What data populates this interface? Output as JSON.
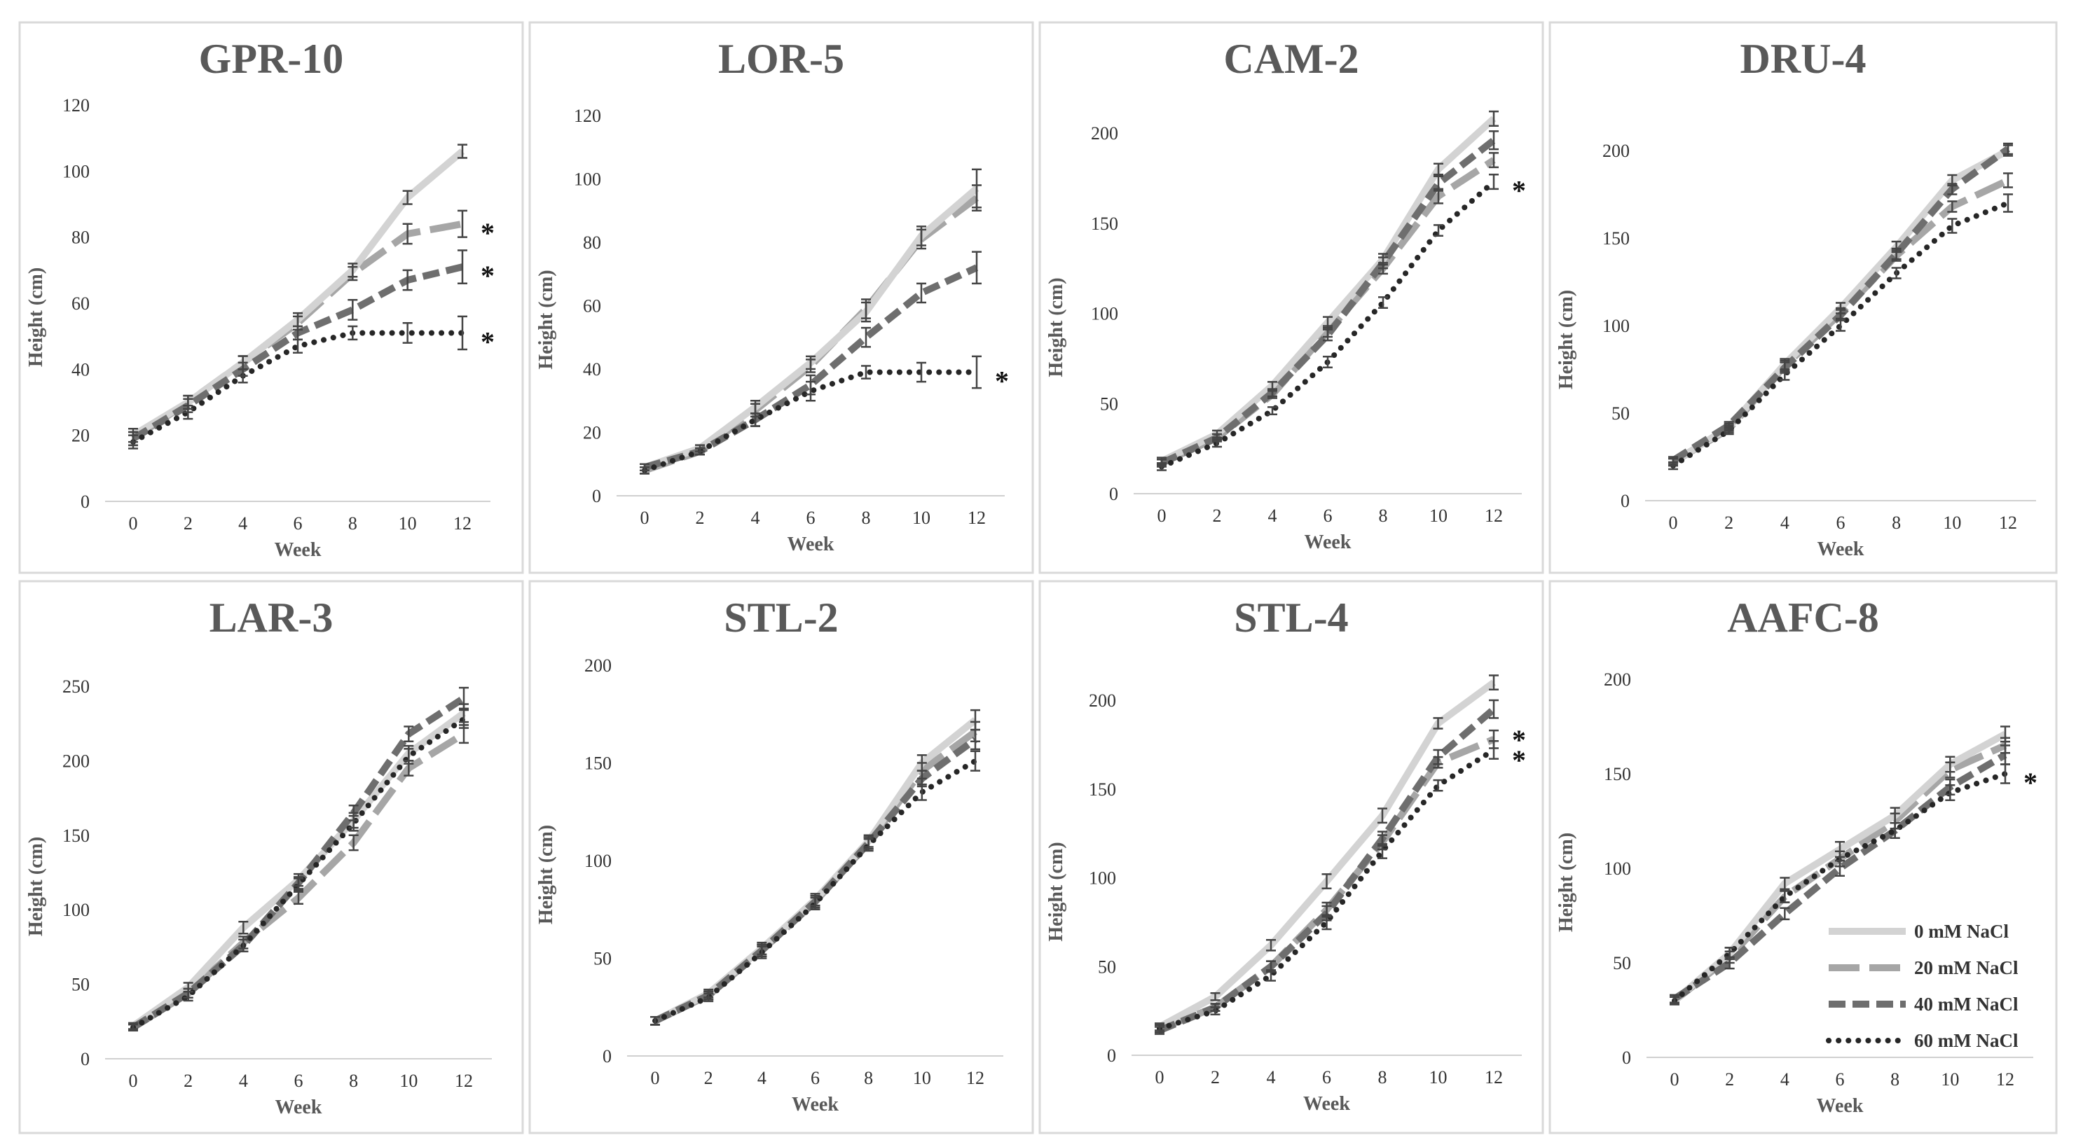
{
  "chart_data": [
    {
      "type": "line",
      "title": "GPR-10",
      "xlabel": "Week",
      "ylabel": "Height (cm)",
      "x": [
        0,
        2,
        4,
        6,
        8,
        10,
        12
      ],
      "ylim": [
        0,
        120
      ],
      "yticks": [
        0,
        20,
        40,
        60,
        80,
        100,
        120
      ],
      "series": [
        {
          "name": "0 mM NaCl",
          "values": [
            20,
            30,
            42,
            55,
            70,
            92,
            106
          ],
          "errors": [
            2,
            2,
            2,
            2,
            2,
            2,
            2
          ]
        },
        {
          "name": "20 mM NaCl",
          "values": [
            19,
            30,
            42,
            54,
            69,
            81,
            84
          ],
          "errors": [
            2,
            2,
            2,
            2,
            2,
            3,
            4
          ]
        },
        {
          "name": "40 mM NaCl",
          "values": [
            19,
            29,
            40,
            51,
            58,
            67,
            71
          ],
          "errors": [
            2,
            2,
            2,
            2,
            3,
            3,
            5
          ]
        },
        {
          "name": "60 mM NaCl",
          "values": [
            18,
            27,
            38,
            47,
            51,
            51,
            51
          ],
          "errors": [
            2,
            2,
            2,
            2,
            2,
            3,
            5
          ]
        }
      ],
      "significance": [
        "*",
        "*",
        "*"
      ]
    },
    {
      "type": "line",
      "title": "LOR-5",
      "xlabel": "Week",
      "ylabel": "Height (cm)",
      "x": [
        0,
        2,
        4,
        6,
        8,
        10,
        12
      ],
      "ylim": [
        0,
        120
      ],
      "yticks": [
        0,
        20,
        40,
        60,
        80,
        100,
        120
      ],
      "series": [
        {
          "name": "0 mM NaCl",
          "values": [
            9,
            15,
            28,
            42,
            58,
            82,
            97
          ],
          "errors": [
            1,
            1,
            2,
            2,
            3,
            3,
            6
          ]
        },
        {
          "name": "20 mM NaCl",
          "values": [
            8,
            14,
            27,
            41,
            59,
            81,
            94
          ],
          "errors": [
            1,
            1,
            2,
            2,
            3,
            3,
            4
          ]
        },
        {
          "name": "40 mM NaCl",
          "values": [
            9,
            14,
            24,
            35,
            50,
            64,
            72
          ],
          "errors": [
            1,
            1,
            2,
            3,
            3,
            3,
            5
          ]
        },
        {
          "name": "60 mM NaCl",
          "values": [
            8,
            14,
            24,
            33,
            39,
            39,
            39
          ],
          "errors": [
            1,
            1,
            2,
            3,
            2,
            3,
            5
          ]
        }
      ],
      "significance": [
        "*"
      ]
    },
    {
      "type": "line",
      "title": "CAM-2",
      "xlabel": "Week",
      "ylabel": "Height (cm)",
      "x": [
        0,
        2,
        4,
        6,
        8,
        10,
        12
      ],
      "ylim": [
        0,
        200
      ],
      "yticks": [
        0,
        50,
        100,
        150,
        200
      ],
      "series": [
        {
          "name": "0 mM NaCl",
          "values": [
            18,
            33,
            60,
            95,
            130,
            180,
            208
          ],
          "errors": [
            2,
            2,
            2,
            3,
            3,
            3,
            4
          ]
        },
        {
          "name": "20 mM NaCl",
          "values": [
            17,
            31,
            55,
            90,
            125,
            165,
            185
          ],
          "errors": [
            2,
            2,
            2,
            3,
            3,
            4,
            4
          ]
        },
        {
          "name": "40 mM NaCl",
          "values": [
            17,
            31,
            56,
            88,
            128,
            172,
            196
          ],
          "errors": [
            2,
            2,
            2,
            3,
            3,
            4,
            5
          ]
        },
        {
          "name": "60 mM NaCl",
          "values": [
            15,
            28,
            46,
            73,
            106,
            146,
            173
          ],
          "errors": [
            2,
            2,
            2,
            3,
            3,
            3,
            4
          ]
        }
      ],
      "significance": [
        "*"
      ]
    },
    {
      "type": "line",
      "title": "DRU-4",
      "xlabel": "Week",
      "ylabel": "Height (cm)",
      "x": [
        0,
        2,
        4,
        6,
        8,
        10,
        12
      ],
      "ylim": [
        0,
        200
      ],
      "yticks": [
        0,
        50,
        100,
        150,
        200
      ],
      "series": [
        {
          "name": "0 mM NaCl",
          "values": [
            22,
            42,
            78,
            110,
            145,
            183,
            200
          ],
          "errors": [
            2,
            2,
            3,
            3,
            3,
            3,
            3
          ]
        },
        {
          "name": "20 mM NaCl",
          "values": [
            22,
            41,
            77,
            107,
            140,
            168,
            183
          ],
          "errors": [
            2,
            2,
            3,
            3,
            3,
            3,
            4
          ]
        },
        {
          "name": "40 mM NaCl",
          "values": [
            23,
            43,
            76,
            106,
            141,
            178,
            201
          ],
          "errors": [
            2,
            2,
            3,
            3,
            3,
            3,
            3
          ]
        },
        {
          "name": "60 mM NaCl",
          "values": [
            20,
            40,
            72,
            100,
            130,
            157,
            170
          ],
          "errors": [
            2,
            2,
            3,
            3,
            3,
            4,
            5
          ]
        }
      ]
    },
    {
      "type": "line",
      "title": "LAR-3",
      "xlabel": "Week",
      "ylabel": "Height (cm)",
      "x": [
        0,
        2,
        4,
        6,
        8,
        10,
        12
      ],
      "ylim": [
        0,
        250
      ],
      "yticks": [
        0,
        50,
        100,
        150,
        200,
        250
      ],
      "series": [
        {
          "name": "0 mM NaCl",
          "values": [
            22,
            48,
            88,
            120,
            160,
            205,
            232
          ],
          "errors": [
            2,
            3,
            4,
            4,
            5,
            5,
            6
          ]
        },
        {
          "name": "20 mM NaCl",
          "values": [
            21,
            44,
            78,
            108,
            145,
            195,
            218
          ],
          "errors": [
            2,
            3,
            4,
            4,
            5,
            5,
            6
          ]
        },
        {
          "name": "40 mM NaCl",
          "values": [
            21,
            44,
            76,
            118,
            165,
            218,
            242
          ],
          "errors": [
            2,
            3,
            4,
            4,
            5,
            5,
            7
          ]
        },
        {
          "name": "60 mM NaCl",
          "values": [
            21,
            42,
            76,
            117,
            158,
            203,
            228
          ],
          "errors": [
            2,
            3,
            4,
            4,
            5,
            5,
            6
          ]
        }
      ]
    },
    {
      "type": "line",
      "title": "STL-2",
      "xlabel": "Week",
      "ylabel": "Height (cm)",
      "x": [
        0,
        2,
        4,
        6,
        8,
        10,
        12
      ],
      "ylim": [
        0,
        200
      ],
      "yticks": [
        0,
        50,
        100,
        150,
        200
      ],
      "series": [
        {
          "name": "0 mM NaCl",
          "values": [
            18,
            32,
            55,
            80,
            110,
            150,
            172
          ],
          "errors": [
            2,
            2,
            3,
            3,
            3,
            4,
            5
          ]
        },
        {
          "name": "20 mM NaCl",
          "values": [
            18,
            31,
            54,
            79,
            109,
            146,
            166
          ],
          "errors": [
            2,
            2,
            3,
            3,
            3,
            4,
            5
          ]
        },
        {
          "name": "40 mM NaCl",
          "values": [
            18,
            31,
            54,
            79,
            109,
            142,
            162
          ],
          "errors": [
            2,
            2,
            3,
            3,
            3,
            4,
            5
          ]
        },
        {
          "name": "60 mM NaCl",
          "values": [
            18,
            30,
            53,
            78,
            108,
            135,
            151
          ],
          "errors": [
            2,
            2,
            3,
            3,
            3,
            4,
            5
          ]
        }
      ]
    },
    {
      "type": "line",
      "title": "STL-4",
      "xlabel": "Week",
      "ylabel": "Height (cm)",
      "x": [
        0,
        2,
        4,
        6,
        8,
        10,
        12
      ],
      "ylim": [
        0,
        200
      ],
      "yticks": [
        0,
        50,
        100,
        150,
        200
      ],
      "series": [
        {
          "name": "0 mM NaCl",
          "values": [
            16,
            33,
            62,
            98,
            135,
            187,
            210
          ],
          "errors": [
            2,
            2,
            3,
            4,
            4,
            3,
            4
          ]
        },
        {
          "name": "20 mM NaCl",
          "values": [
            15,
            27,
            50,
            82,
            120,
            165,
            178
          ],
          "errors": [
            2,
            2,
            3,
            4,
            4,
            3,
            5
          ]
        },
        {
          "name": "40 mM NaCl",
          "values": [
            14,
            27,
            50,
            80,
            122,
            168,
            195
          ],
          "errors": [
            2,
            2,
            3,
            4,
            4,
            4,
            5
          ]
        },
        {
          "name": "60 mM NaCl",
          "values": [
            15,
            25,
            45,
            75,
            115,
            152,
            172
          ],
          "errors": [
            2,
            2,
            3,
            4,
            4,
            3,
            5
          ]
        }
      ],
      "significance": [
        "*",
        "*"
      ]
    },
    {
      "type": "line",
      "title": "AAFC-8",
      "xlabel": "Week",
      "ylabel": "Height (cm)",
      "x": [
        0,
        2,
        4,
        6,
        8,
        10,
        12
      ],
      "ylim": [
        0,
        200
      ],
      "yticks": [
        0,
        50,
        100,
        150,
        200
      ],
      "series": [
        {
          "name": "0 mM NaCl",
          "values": [
            30,
            55,
            92,
            110,
            128,
            155,
            171
          ],
          "errors": [
            2,
            3,
            3,
            4,
            4,
            4,
            4
          ]
        },
        {
          "name": "20 mM NaCl",
          "values": [
            30,
            53,
            85,
            105,
            125,
            152,
            165
          ],
          "errors": [
            2,
            3,
            3,
            4,
            4,
            4,
            4
          ]
        },
        {
          "name": "40 mM NaCl",
          "values": [
            31,
            50,
            76,
            100,
            120,
            143,
            160
          ],
          "errors": [
            2,
            3,
            3,
            4,
            4,
            4,
            5
          ]
        },
        {
          "name": "60 mM NaCl",
          "values": [
            30,
            55,
            85,
            105,
            120,
            140,
            150
          ],
          "errors": [
            2,
            3,
            3,
            4,
            4,
            4,
            5
          ]
        }
      ],
      "significance": [
        "*"
      ]
    }
  ],
  "legend": {
    "items": [
      "0 mM NaCl",
      "20 mM NaCl",
      "40 mM NaCl",
      "60 mM NaCl"
    ]
  },
  "series_styles": [
    {
      "name": "0 mM NaCl",
      "color": "#d3d3d3",
      "dash": "solid"
    },
    {
      "name": "20 mM NaCl",
      "color": "#a6a6a6",
      "dash": "long-dash"
    },
    {
      "name": "40 mM NaCl",
      "color": "#6e6e6e",
      "dash": "dash"
    },
    {
      "name": "60 mM NaCl",
      "color": "#262626",
      "dash": "dot"
    }
  ]
}
